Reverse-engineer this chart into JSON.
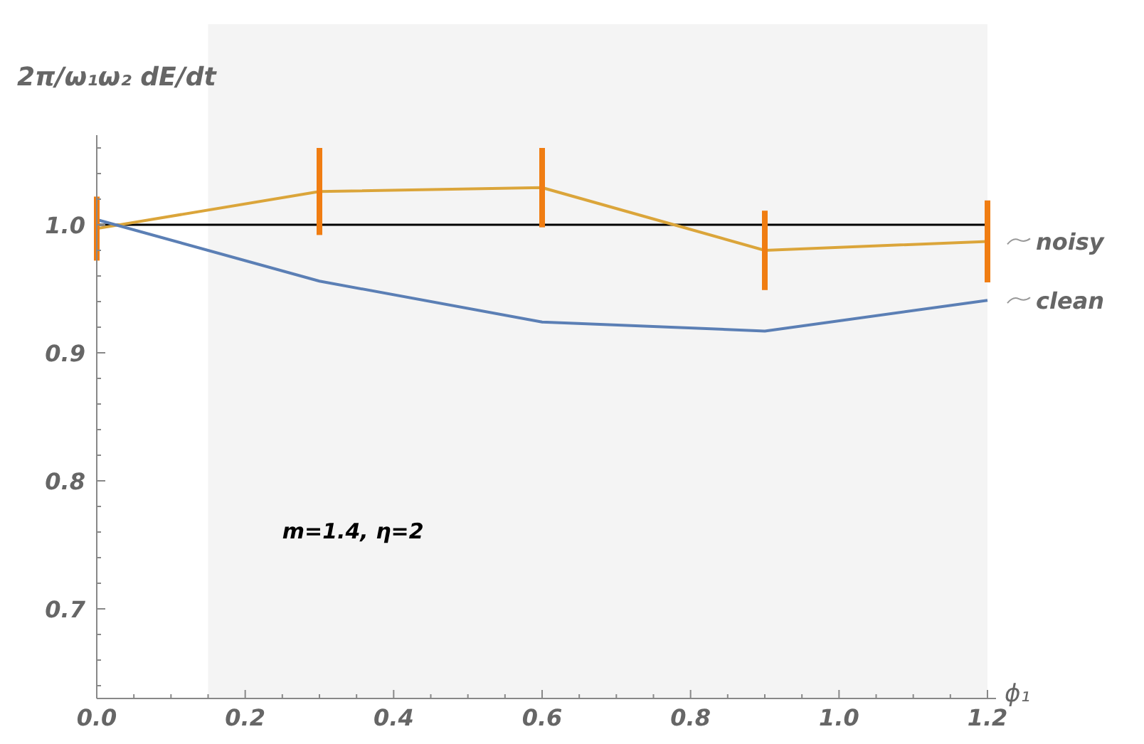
{
  "chart_data": {
    "type": "line",
    "ylabel": "2π/ω₁ω₂ dE/dt",
    "xlabel": "ϕ₁",
    "x": [
      0,
      0.3,
      0.6,
      0.9,
      1.2
    ],
    "series": [
      {
        "name": "noisy",
        "color": "#dba53a",
        "values": [
          0.997,
          1.026,
          1.029,
          0.98,
          0.987
        ],
        "errors": [
          0.025,
          0.034,
          0.031,
          0.031,
          0.032
        ]
      },
      {
        "name": "clean",
        "color": "#5b7fb5",
        "values": [
          1.004,
          0.956,
          0.924,
          0.917,
          0.941
        ]
      }
    ],
    "xlim": [
      0,
      1.2
    ],
    "xticks": [
      {
        "value": 0,
        "label": "0.0"
      },
      {
        "value": 0.05,
        "label": null
      },
      {
        "value": 0.1,
        "label": null
      },
      {
        "value": 0.15,
        "label": null
      },
      {
        "value": 0.2,
        "label": "0.2"
      },
      {
        "value": 0.25,
        "label": null
      },
      {
        "value": 0.3,
        "label": null
      },
      {
        "value": 0.35,
        "label": null
      },
      {
        "value": 0.4,
        "label": "0.4"
      },
      {
        "value": 0.45,
        "label": null
      },
      {
        "value": 0.5,
        "label": null
      },
      {
        "value": 0.55,
        "label": null
      },
      {
        "value": 0.6,
        "label": "0.6"
      },
      {
        "value": 0.65,
        "label": null
      },
      {
        "value": 0.7,
        "label": null
      },
      {
        "value": 0.75,
        "label": null
      },
      {
        "value": 0.8,
        "label": "0.8"
      },
      {
        "value": 0.85,
        "label": null
      },
      {
        "value": 0.9,
        "label": null
      },
      {
        "value": 0.95,
        "label": null
      },
      {
        "value": 1.0,
        "label": "1.0"
      },
      {
        "value": 1.05,
        "label": null
      },
      {
        "value": 1.1,
        "label": null
      },
      {
        "value": 1.15,
        "label": null
      },
      {
        "value": 1.2,
        "label": "1.2"
      }
    ],
    "ylim": [
      0.63,
      1.07
    ],
    "yticks": [
      {
        "value": 0.64,
        "label": null
      },
      {
        "value": 0.66,
        "label": null
      },
      {
        "value": 0.68,
        "label": null
      },
      {
        "value": 0.7,
        "label": "0.7"
      },
      {
        "value": 0.72,
        "label": null
      },
      {
        "value": 0.74,
        "label": null
      },
      {
        "value": 0.76,
        "label": null
      },
      {
        "value": 0.78,
        "label": null
      },
      {
        "value": 0.8,
        "label": "0.8"
      },
      {
        "value": 0.82,
        "label": null
      },
      {
        "value": 0.84,
        "label": null
      },
      {
        "value": 0.86,
        "label": null
      },
      {
        "value": 0.88,
        "label": null
      },
      {
        "value": 0.9,
        "label": "0.9"
      },
      {
        "value": 0.92,
        "label": null
      },
      {
        "value": 0.94,
        "label": null
      },
      {
        "value": 0.96,
        "label": null
      },
      {
        "value": 0.98,
        "label": null
      },
      {
        "value": 1.0,
        "label": "1.0"
      },
      {
        "value": 1.02,
        "label": null
      },
      {
        "value": 1.04,
        "label": null
      },
      {
        "value": 1.06,
        "label": null
      }
    ],
    "ref_lines": [
      {
        "axis": "y",
        "value": 1.0,
        "color": "#000000"
      }
    ],
    "bands": [
      {
        "axis": "x",
        "from": 0.15,
        "to": 1.2,
        "color": "#f4f4f4"
      }
    ],
    "annotations": [
      "m=1.4, η=2"
    ],
    "grid": false
  }
}
